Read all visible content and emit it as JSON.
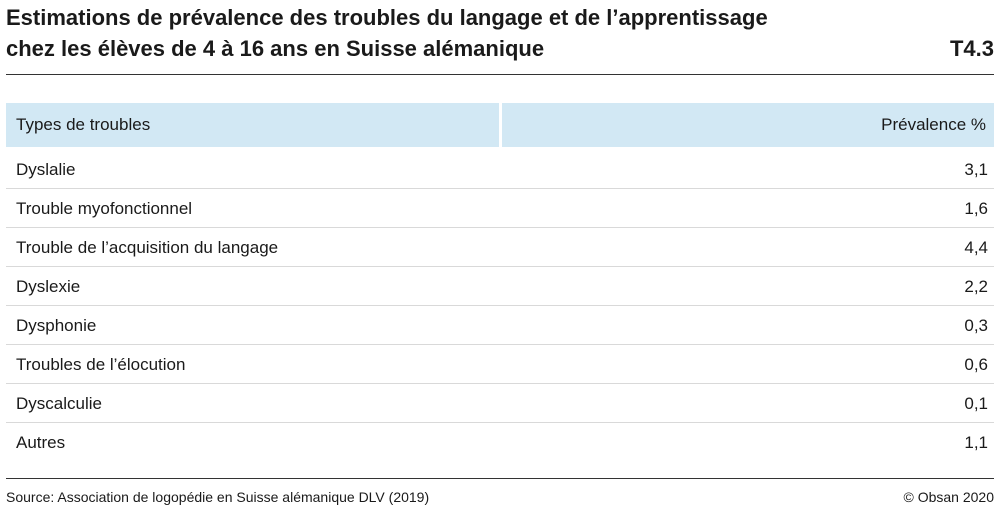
{
  "header": {
    "title_line1": "Estimations de prévalence des troubles du langage et de l’apprentissage",
    "title_line2": "chez les élèves de 4 à 16 ans en Suisse alémanique",
    "table_id": "T4.3"
  },
  "table": {
    "columns": {
      "type": "Types de troubles",
      "value": "Prévalence %"
    },
    "rows": [
      {
        "type": "Dyslalie",
        "value": "3,1"
      },
      {
        "type": "Trouble myofonctionnel",
        "value": "1,6"
      },
      {
        "type": "Trouble de l’acquisition du langage",
        "value": "4,4"
      },
      {
        "type": "Dyslexie",
        "value": "2,2"
      },
      {
        "type": "Dysphonie",
        "value": "0,3"
      },
      {
        "type": "Troubles de l’élocution",
        "value": "0,6"
      },
      {
        "type": "Dyscalculie",
        "value": "0,1"
      },
      {
        "type": "Autres",
        "value": "1,1"
      }
    ]
  },
  "footer": {
    "source": "Source: Association de logopédie en Suisse alémanique DLV (2019)",
    "copyright": "© Obsan 2020"
  },
  "colors": {
    "header_fill": "#d2e8f4",
    "rule": "#333333",
    "row_divider": "#d9d9d9"
  }
}
